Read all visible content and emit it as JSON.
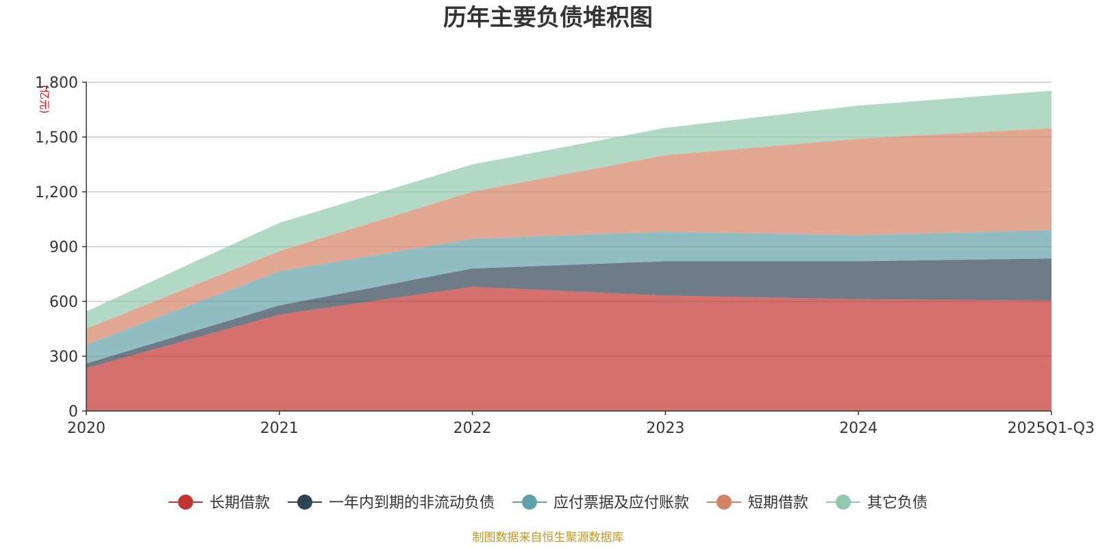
{
  "chart_data": {
    "type": "area",
    "stacked": true,
    "title": "历年主要负债堆积图",
    "unit": "(亿元)",
    "categories": [
      "2020",
      "2021",
      "2022",
      "2023",
      "2024",
      "2025Q1-Q3"
    ],
    "ylim": [
      0,
      1800
    ],
    "yticks": [
      0,
      300,
      600,
      900,
      1200,
      1500,
      1800
    ],
    "ytick_labels": [
      "0",
      "300",
      "600",
      "900",
      "1,200",
      "1,500",
      "1,800"
    ],
    "grid": true,
    "legend_position": "bottom",
    "series": [
      {
        "name": "长期借款",
        "color": "#c23531",
        "values": [
          235,
          528,
          680,
          632,
          612,
          605
        ]
      },
      {
        "name": "一年内到期的非流动负债",
        "color": "#2f4554",
        "values": [
          25,
          50,
          100,
          188,
          208,
          230
        ]
      },
      {
        "name": "应付票据及应付账款",
        "color": "#61a0a8",
        "values": [
          103,
          187,
          162,
          162,
          142,
          155
        ]
      },
      {
        "name": "短期借款",
        "color": "#d48265",
        "values": [
          87,
          110,
          258,
          418,
          528,
          558
        ]
      },
      {
        "name": "其它负债",
        "color": "#91c7ae",
        "values": [
          95,
          155,
          150,
          150,
          182,
          205
        ]
      }
    ]
  },
  "source": {
    "text": "制图数据来自恒生聚源数据库",
    "color": "#c8961e"
  }
}
